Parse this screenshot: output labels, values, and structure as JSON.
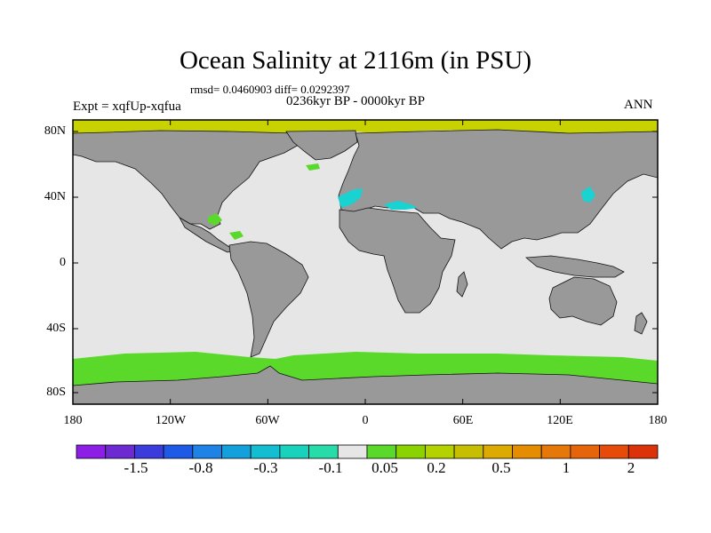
{
  "title": "Ocean Salinity at 2116m (in PSU)",
  "stats": "rmsd= 0.0460903 diff= 0.0292397",
  "experiment": "Expt = xqfUp-xqfua",
  "period": "0236kyr BP - 0000kyr BP",
  "season": "ANN",
  "map": {
    "lon_labels": [
      "180",
      "120W",
      "60W",
      "0",
      "60E",
      "120E",
      "180"
    ],
    "lat_labels": [
      "80N",
      "40N",
      "0",
      "40S",
      "80S"
    ],
    "colors": {
      "land": "#999999",
      "background_ocean": "#e6e6e6",
      "positive_anomaly_green": "#5ad92a",
      "positive_anomaly_yellow": "#c8d200",
      "negative_anomaly_cyan": "#19d2d2"
    }
  },
  "colorbar": {
    "labels": [
      "-1.5",
      "-0.8",
      "-0.3",
      "-0.1",
      "0.05",
      "0.2",
      "0.5",
      "1",
      "2"
    ],
    "colors": [
      "#8c1ee6",
      "#6e2ad2",
      "#3c3cdc",
      "#1e5ae6",
      "#1e82e6",
      "#14a0dc",
      "#14bed2",
      "#19d2be",
      "#28dcaa",
      "#e6e6e6",
      "#5ad92a",
      "#8ad200",
      "#b4d200",
      "#c8be00",
      "#dcaa00",
      "#e68c00",
      "#e6780a",
      "#e6640a",
      "#e64b0a",
      "#dc320a"
    ]
  }
}
